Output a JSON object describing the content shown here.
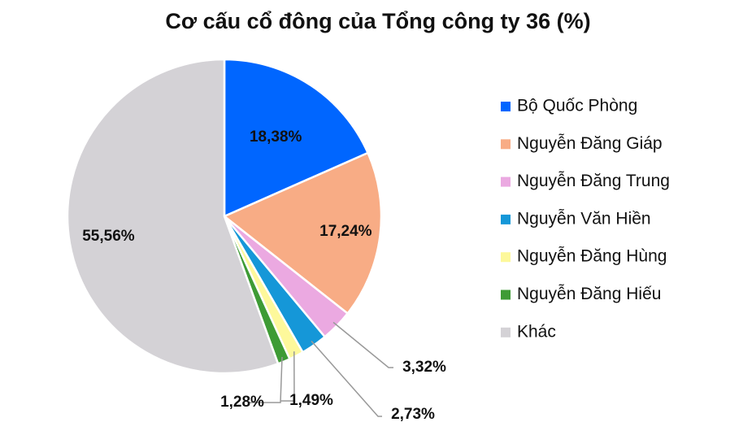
{
  "chart_data": {
    "type": "pie",
    "title": "Cơ cấu cổ đông của Tổng công ty 36 (%)",
    "categories": [
      "Bộ Quốc Phòng",
      "Nguyễn Đăng Giáp",
      "Nguyễn Đăng Trung",
      "Nguyễn Văn Hiền",
      "Nguyễn Đăng Hùng",
      "Nguyễn Đăng Hiếu",
      "Khác"
    ],
    "values": [
      18.38,
      17.24,
      3.32,
      2.73,
      1.49,
      1.28,
      55.56
    ],
    "value_labels": [
      "18,38%",
      "17,24%",
      "3,32%",
      "2,73%",
      "1,49%",
      "1,28%",
      "55,56%"
    ],
    "colors": [
      "#0066ff",
      "#f8ac85",
      "#eba9e1",
      "#1597d8",
      "#fdf89b",
      "#3e9b35",
      "#d4d2d6"
    ],
    "legend": "right"
  }
}
